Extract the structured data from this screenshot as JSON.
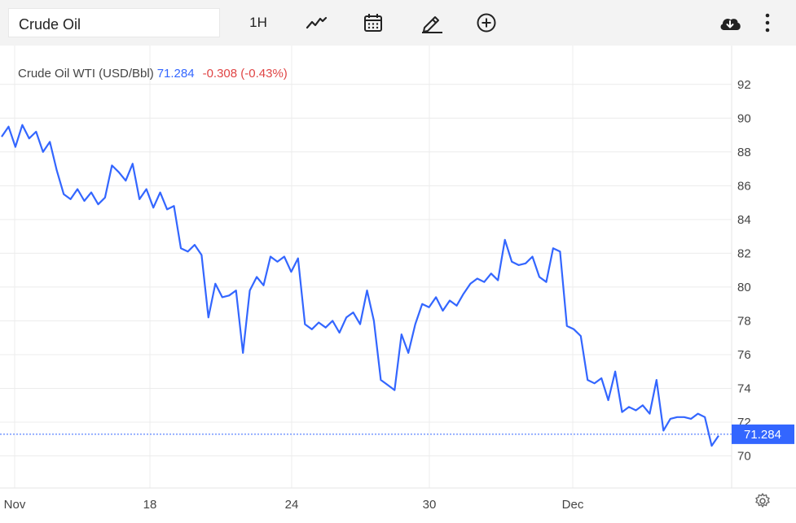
{
  "toolbar": {
    "search_value": "Crude Oil",
    "interval_label": "1H",
    "icons": [
      "line-chart-icon",
      "calendar-icon",
      "pencil-icon",
      "add-circle-icon",
      "cloud-download-icon",
      "more-vertical-icon"
    ]
  },
  "legend": {
    "name": "Crude Oil WTI (USD/Bbl)",
    "price": "71.284",
    "change": "-0.308 (-0.43%)"
  },
  "colors": {
    "line": "#3366ff",
    "negative": "#e04545",
    "price_tag_bg": "#3366ff"
  },
  "chart_data": {
    "type": "line",
    "title": "",
    "xlabel": "",
    "ylabel": "",
    "x_tick_labels": [
      "Nov",
      "18",
      "24",
      "30",
      "Dec"
    ],
    "y_tick_labels": [
      "70",
      "72",
      "74",
      "76",
      "78",
      "80",
      "82",
      "84",
      "86",
      "88",
      "90",
      "92"
    ],
    "ylim": [
      68.1,
      94.3
    ],
    "grid": true,
    "current_value_label": "71.284",
    "current_value": 71.284,
    "series": [
      {
        "values": [
          88.9,
          89.5,
          88.3,
          89.6,
          88.8,
          89.2,
          88.0,
          88.6,
          86.9,
          85.5,
          85.2,
          85.8,
          85.1,
          85.6,
          84.9,
          85.3,
          87.2,
          86.8,
          86.3,
          87.3,
          85.2,
          85.8,
          84.7,
          85.6,
          84.6,
          84.8,
          82.3,
          82.1,
          82.5,
          81.9,
          78.2,
          80.2,
          79.4,
          79.5,
          79.8,
          76.1,
          79.8,
          80.6,
          80.1,
          81.8,
          81.5,
          81.8,
          80.9,
          81.7,
          77.8,
          77.5,
          77.9,
          77.6,
          78.0,
          77.3,
          78.2,
          78.5,
          77.8,
          79.8,
          78.0,
          74.5,
          74.2,
          73.9,
          77.2,
          76.1,
          77.8,
          79.0,
          78.8,
          79.4,
          78.6,
          79.2,
          78.9,
          79.6,
          80.2,
          80.5,
          80.3,
          80.8,
          80.4,
          82.8,
          81.5,
          81.3,
          81.4,
          81.8,
          80.6,
          80.3,
          82.3,
          82.1,
          77.7,
          77.5,
          77.1,
          74.5,
          74.3,
          74.6,
          73.3,
          75.0,
          72.6,
          72.9,
          72.7,
          73.0,
          72.5,
          74.5,
          71.5,
          72.2,
          72.3,
          72.3,
          72.2,
          72.5,
          72.3,
          70.6,
          71.2
        ]
      }
    ]
  }
}
